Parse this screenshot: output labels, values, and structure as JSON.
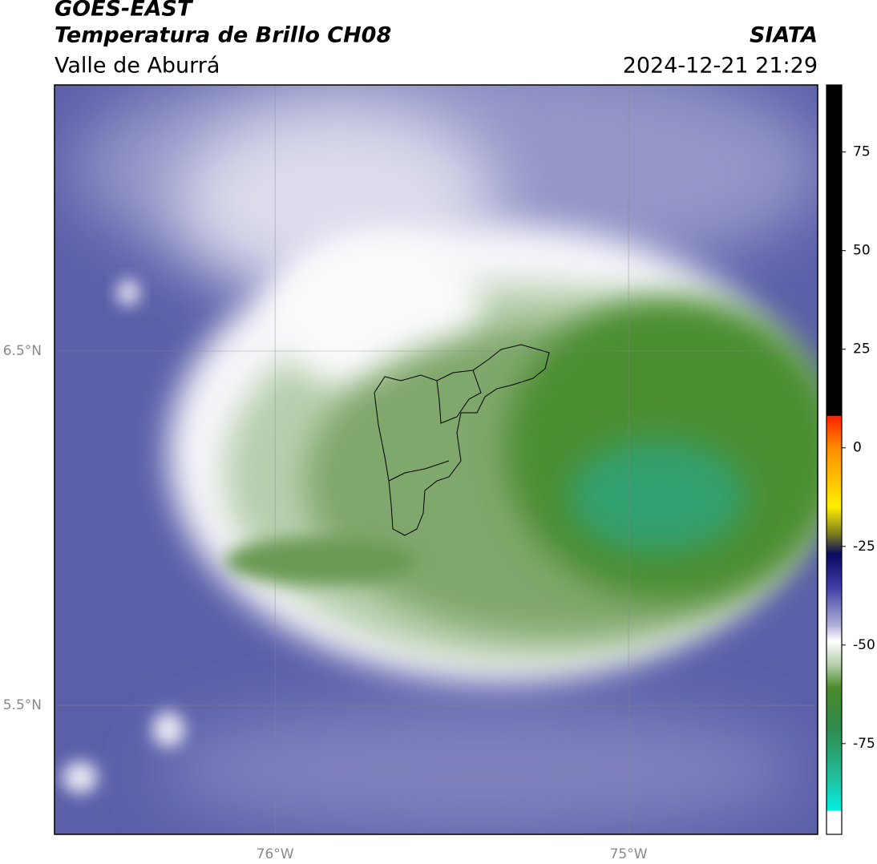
{
  "header": {
    "title": "GOES-EAST",
    "subtitle": "Temperatura de Brillo CH08",
    "region": "Valle de Aburrá",
    "source": "SIATA",
    "timestamp": "2024-12-21 21:29"
  },
  "map": {
    "xlim": [
      -76.624,
      -74.465
    ],
    "ylim": [
      5.136,
      7.251
    ],
    "xticks": [
      {
        "value": -76,
        "label": "76°W"
      },
      {
        "value": -75,
        "label": "75°W"
      }
    ],
    "yticks": [
      {
        "value": 6.5,
        "label": "6.5°N"
      },
      {
        "value": 5.5,
        "label": "5.5°N"
      }
    ],
    "grid": true
  },
  "colorbar": {
    "lim": [
      -98,
      92
    ],
    "ticks": [
      75,
      50,
      25,
      0,
      -25,
      -50,
      -75
    ]
  }
}
